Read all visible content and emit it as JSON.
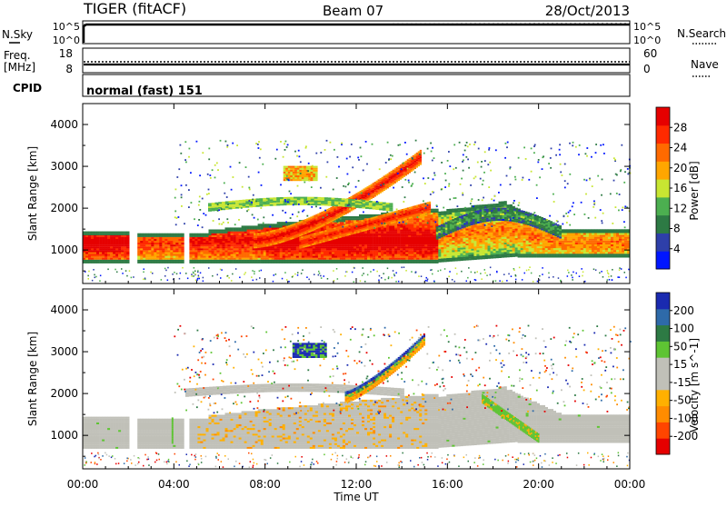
{
  "header": {
    "radar": "TIGER (fitACF)",
    "beam": "Beam 07",
    "date": "28/Oct/2013"
  },
  "nsky_panel": {
    "left_label": "N.Sky",
    "right_label": "N.Search",
    "left_ticks": [
      "10^5",
      "10^0"
    ],
    "right_ticks": [
      "10^5",
      "10^0"
    ]
  },
  "freq_panel": {
    "left_label_1": "Freq.",
    "left_label_2": "[MHz]",
    "right_label": "Nave",
    "left_ticks": [
      "18",
      "8"
    ],
    "right_ticks": [
      "60",
      "0"
    ]
  },
  "cpid_panel": {
    "label": "CPID",
    "text": "normal (fast) 151"
  },
  "x_axis": {
    "ticks": [
      "00:00",
      "04:00",
      "08:00",
      "12:00",
      "16:00",
      "20:00",
      "00:00"
    ],
    "label": "Time UT"
  },
  "colors": {
    "power_scale": [
      "#0016ff",
      "#2e3fa9",
      "#2d7a44",
      "#4caf50",
      "#c8e632",
      "#ffa600",
      "#ff6a00",
      "#ff2a00",
      "#e60000"
    ],
    "velocity_scale": [
      "#e60000",
      "#ff4500",
      "#ff8c00",
      "#ffb000",
      "#c0c0b8",
      "#c0c0b8",
      "#5ec433",
      "#2d7a44",
      "#2e6aa9",
      "#1a2ab0"
    ],
    "ground_scatter": "#c0c0b8"
  },
  "chart_data": [
    {
      "type": "heatmap",
      "title": "",
      "xlabel": "",
      "ylabel": "Slant Range [km]",
      "xlim": [
        0,
        24
      ],
      "ylim": [
        200,
        4500
      ],
      "y_ticks": [
        "1000",
        "2000",
        "3000",
        "4000"
      ],
      "colorbar": {
        "label": "Power [dB]",
        "ticks": [
          "28",
          "24",
          "20",
          "16",
          "12",
          "8",
          "4"
        ],
        "range": [
          0,
          32
        ]
      },
      "features": [
        {
          "name": "near-range band",
          "hours": [
            0,
            24
          ],
          "range_km": [
            650,
            1450
          ],
          "value_db": 22
        },
        {
          "name": "rising arc",
          "hours": [
            7.5,
            14.8
          ],
          "range_km": [
            1000,
            3200
          ],
          "value_db": 26
        },
        {
          "name": "lower arc",
          "hours": [
            9,
            15.5
          ],
          "range_km": [
            1000,
            2100
          ],
          "value_db": 24
        },
        {
          "name": "evening hump",
          "hours": [
            15.5,
            21
          ],
          "range_km": [
            1000,
            2000
          ],
          "value_db": 14
        },
        {
          "name": "echo patch",
          "hours": [
            8.8,
            10.2
          ],
          "range_km": [
            2600,
            3050
          ],
          "value_db": 20
        }
      ]
    },
    {
      "type": "heatmap",
      "title": "",
      "xlabel": "Time UT",
      "ylabel": "Slant Range [km]",
      "xlim": [
        0,
        24
      ],
      "ylim": [
        200,
        4500
      ],
      "y_ticks": [
        "1000",
        "2000",
        "3000",
        "4000"
      ],
      "colorbar": {
        "label": "Velocity [m s^-1]",
        "ticks": [
          "200",
          "100",
          "50",
          "15",
          "-15",
          "-50",
          "-100",
          "-200"
        ],
        "range": [
          -250,
          250
        ]
      },
      "features": [
        {
          "name": "ground scatter band",
          "hours": [
            0,
            24
          ],
          "range_km": [
            650,
            1450
          ],
          "value_ms": 0
        },
        {
          "name": "ionospheric arc",
          "hours": [
            11.5,
            15
          ],
          "range_km": [
            1800,
            3450
          ],
          "value_ms": 120
        },
        {
          "name": "descending streak",
          "hours": [
            17.5,
            20
          ],
          "range_km": [
            800,
            1900
          ],
          "value_ms": 40
        }
      ]
    }
  ]
}
